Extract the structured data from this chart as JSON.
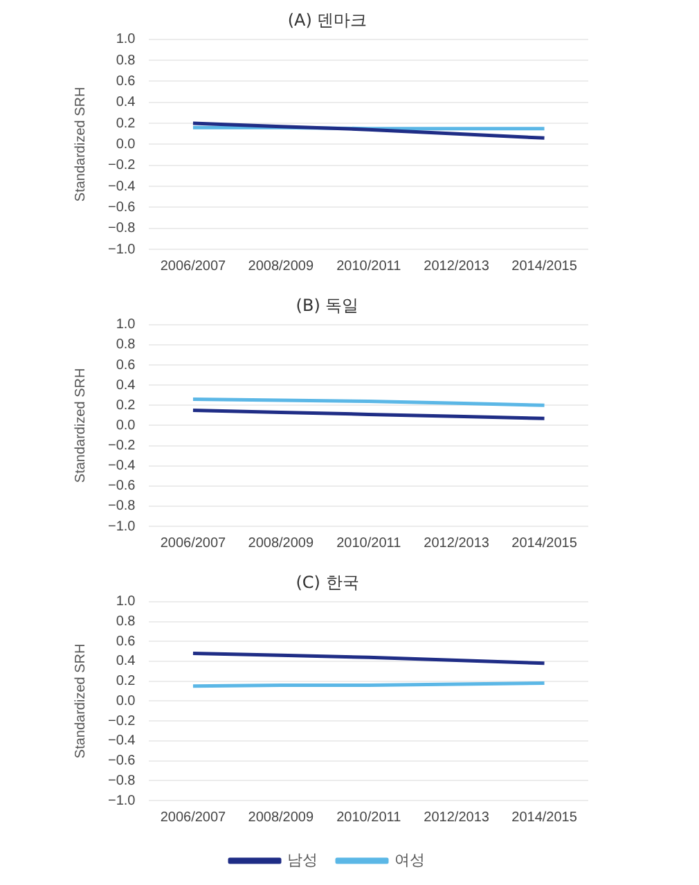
{
  "chart_data": [
    {
      "type": "line",
      "title": "(A) 덴마크",
      "ylabel": "Standardized SRH",
      "categories": [
        "2006/2007",
        "2008/2009",
        "2010/2011",
        "2012/2013",
        "2014/2015"
      ],
      "ylim": [
        -1.0,
        1.0
      ],
      "yticks": [
        {
          "value": -1,
          "label": "−1.0"
        },
        {
          "value": -0.8,
          "label": "−0.8"
        },
        {
          "value": -0.6,
          "label": "−0.6"
        },
        {
          "value": -0.4,
          "label": "−0.4"
        },
        {
          "value": -0.2,
          "label": "−0.2"
        },
        {
          "value": 0,
          "label": "0.0"
        },
        {
          "value": 0.2,
          "label": "0.2"
        },
        {
          "value": 0.4,
          "label": "0.4"
        },
        {
          "value": 0.6,
          "label": "0.6"
        },
        {
          "value": 0.8,
          "label": "0.8"
        },
        {
          "value": 1,
          "label": "1.0"
        }
      ],
      "grid": "y",
      "legend": false,
      "marker": "none",
      "series": [
        {
          "color": "#1f2d86",
          "values": [
            0.2,
            0.17,
            0.14,
            0.1,
            0.06
          ]
        },
        {
          "color": "#5bb7e6",
          "values": [
            0.16,
            0.16,
            0.15,
            0.15,
            0.15
          ]
        }
      ]
    },
    {
      "type": "line",
      "title": "(B) 독일",
      "ylabel": "Standardized SRH",
      "categories": [
        "2006/2007",
        "2008/2009",
        "2010/2011",
        "2012/2013",
        "2014/2015"
      ],
      "ylim": [
        -1.0,
        1.0
      ],
      "yticks": [
        {
          "value": -1,
          "label": "−1.0"
        },
        {
          "value": -0.8,
          "label": "−0.8"
        },
        {
          "value": -0.6,
          "label": "−0.6"
        },
        {
          "value": -0.4,
          "label": "−0.4"
        },
        {
          "value": -0.2,
          "label": "−0.2"
        },
        {
          "value": 0,
          "label": "0.0"
        },
        {
          "value": 0.2,
          "label": "0.2"
        },
        {
          "value": 0.4,
          "label": "0.4"
        },
        {
          "value": 0.6,
          "label": "0.6"
        },
        {
          "value": 0.8,
          "label": "0.8"
        },
        {
          "value": 1,
          "label": "1.0"
        }
      ],
      "grid": "y",
      "legend": false,
      "marker": "none",
      "series": [
        {
          "color": "#1f2d86",
          "values": [
            0.15,
            0.13,
            0.11,
            0.09,
            0.07
          ]
        },
        {
          "color": "#5bb7e6",
          "values": [
            0.26,
            0.25,
            0.24,
            0.22,
            0.2
          ]
        }
      ]
    },
    {
      "type": "line",
      "title": "(C) 한국",
      "ylabel": "Standardized SRH",
      "categories": [
        "2006/2007",
        "2008/2009",
        "2010/2011",
        "2012/2013",
        "2014/2015"
      ],
      "ylim": [
        -1.0,
        1.0
      ],
      "yticks": [
        {
          "value": -1,
          "label": "−1.0"
        },
        {
          "value": -0.8,
          "label": "−0.8"
        },
        {
          "value": -0.6,
          "label": "−0.6"
        },
        {
          "value": -0.4,
          "label": "−0.4"
        },
        {
          "value": -0.2,
          "label": "−0.2"
        },
        {
          "value": 0,
          "label": "0.0"
        },
        {
          "value": 0.2,
          "label": "0.2"
        },
        {
          "value": 0.4,
          "label": "0.4"
        },
        {
          "value": 0.6,
          "label": "0.6"
        },
        {
          "value": 0.8,
          "label": "0.8"
        },
        {
          "value": 1,
          "label": "1.0"
        }
      ],
      "grid": "y",
      "legend": "bottom",
      "marker": "none",
      "series": [
        {
          "name": "남성",
          "color": "#1f2d86",
          "values": [
            0.48,
            0.46,
            0.44,
            0.41,
            0.38
          ]
        },
        {
          "name": "여성",
          "color": "#5bb7e6",
          "values": [
            0.15,
            0.16,
            0.16,
            0.17,
            0.18
          ]
        }
      ]
    }
  ]
}
